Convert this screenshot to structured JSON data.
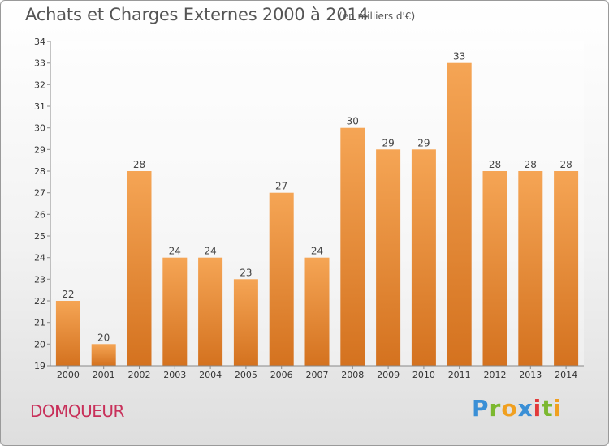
{
  "chart_data": {
    "type": "bar",
    "title": "Achats et Charges Externes 2000 à 2014",
    "subtitle": "(en milliers d'€)",
    "xlabel": "",
    "ylabel": "",
    "categories": [
      "2000",
      "2001",
      "2002",
      "2003",
      "2004",
      "2005",
      "2006",
      "2007",
      "2008",
      "2009",
      "2010",
      "2011",
      "2012",
      "2013",
      "2014"
    ],
    "values": [
      22,
      20,
      28,
      24,
      24,
      23,
      27,
      24,
      30,
      29,
      29,
      33,
      28,
      28,
      28
    ],
    "ylim": [
      19,
      34
    ],
    "yticks": [
      19,
      20,
      21,
      22,
      23,
      24,
      25,
      26,
      27,
      28,
      29,
      30,
      31,
      32,
      33,
      34
    ],
    "grid": false,
    "data_labels": true,
    "colors": {
      "bar_top": "#f5a555",
      "bar_bottom": "#d4721f",
      "axis": "#888888",
      "text": "#333333"
    }
  },
  "footer": {
    "commune": "DOMQUEUR",
    "logo_text": "Proxiti"
  }
}
